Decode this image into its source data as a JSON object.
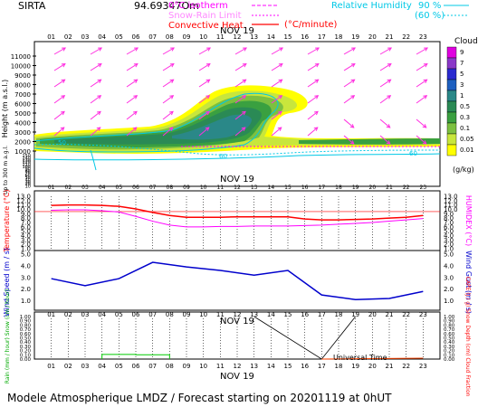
{
  "header": {
    "site": "SIRTA",
    "code": "94.69347Om",
    "legend_isotherm": "0°C isotherm",
    "legend_snow_rain": "Snow-Rain Limit",
    "legend_convective": "Convective Heat.",
    "legend_convective_units": "(°C/minute)",
    "legend_rh": "Relative Humidity",
    "rh_90": "90 %",
    "rh_60": "(60 %)"
  },
  "colors": {
    "isotherm": "#ff00ff",
    "snow_rain": "#ff00ff",
    "convective": "#ff0000",
    "humidity": "#00c8e6",
    "wind_arrows": "#ff2fe0",
    "temperature": "#ff0000",
    "humidex": "#ff00ff",
    "wind": "#0000cc",
    "rain": "#00cc00",
    "snow": "#0000cc",
    "cloud_fraction": "#000000"
  },
  "time_axis": {
    "hours": [
      "01",
      "02",
      "03",
      "04",
      "05",
      "06",
      "07",
      "08",
      "09",
      "10",
      "11",
      "12",
      "13",
      "14",
      "15",
      "16",
      "17",
      "18",
      "19",
      "20",
      "21",
      "22",
      "23"
    ],
    "date_label": "NOV 19",
    "xlabel": "Universal Time"
  },
  "footer": {
    "title": "Modele Atmospherique LMDZ / Forecast starting on 20201119 at 0hUT"
  },
  "chart_data": [
    {
      "type": "heatmap",
      "panel": "clouds-height",
      "ylabel": "Height (m a.s.l.)",
      "ylabel_lower": "Up to 300 m a.g.l.",
      "yticks_upper": [
        "11000",
        "10000",
        "9000",
        "8000",
        "7000",
        "6000",
        "5000",
        "4000",
        "3000",
        "2000",
        "1000"
      ],
      "yticks_lower": [
        "150",
        "140",
        "130",
        "120",
        "110",
        "100",
        "90",
        "80",
        "70",
        "60",
        "50",
        "40",
        "30",
        "20",
        "10"
      ],
      "colorbar_title": "Clouds",
      "colorbar_labels": [
        "9",
        "7",
        "5",
        "3",
        "1",
        "0.5",
        "0.3",
        "0.1",
        "0.05",
        "0.01"
      ],
      "colorbar_units": "(g/kg)",
      "colorbar_colors": [
        "#e000e0",
        "#8a38c8",
        "#2a2ad0",
        "#1e60c0",
        "#2a8888",
        "#2a8a55",
        "#3aa040",
        "#7cc040",
        "#c8e63c",
        "#ffff00"
      ],
      "contour_labels": [
        "50",
        "60",
        "60"
      ],
      "isotherm_height_m": 5800,
      "cloud_layers": [
        {
          "from_hour": 1,
          "to_hour": 9,
          "base_m": 1500,
          "top_m": 2600,
          "max_gkg": 0.3
        },
        {
          "from_hour": 8,
          "to_hour": 14,
          "base_m": 1700,
          "top_m": 4800,
          "max_gkg": 1
        },
        {
          "from_hour": 11,
          "to_hour": 15,
          "base_m": 4000,
          "top_m": 6800,
          "max_gkg": 0.5
        },
        {
          "from_hour": 16,
          "to_hour": 23,
          "base_m": 1300,
          "top_m": 1800,
          "max_gkg": 0.05
        }
      ],
      "wind_arrows": "south-westerly aloft, north-westerly near surface after 16 UT"
    },
    {
      "type": "line",
      "panel": "temperature",
      "ylabel": "Temperature (°C)",
      "ylabel_right": "HUMIDEX (°C)",
      "yticks": [
        "13.0",
        "12.0",
        "11.0",
        "10.0",
        "9.0",
        "8.0",
        "7.0",
        "6.0",
        "5.0",
        "4.0",
        "3.0",
        "2.0",
        "1.0"
      ],
      "ylim": [
        1.0,
        13.0
      ],
      "x": [
        1,
        2,
        3,
        4,
        5,
        6,
        7,
        8,
        9,
        10,
        11,
        12,
        13,
        14,
        15,
        16,
        17,
        18,
        19,
        20,
        21,
        22,
        23
      ],
      "series": [
        {
          "name": "Temperature",
          "values": [
            10.9,
            11.0,
            11.0,
            10.9,
            10.7,
            10.1,
            9.3,
            8.6,
            8.2,
            8.2,
            8.2,
            8.3,
            8.3,
            8.3,
            8.3,
            7.8,
            7.6,
            7.6,
            7.7,
            7.8,
            8.0,
            8.2,
            8.6
          ]
        },
        {
          "name": "HUMIDEX",
          "values": [
            9.8,
            9.9,
            9.9,
            9.7,
            9.4,
            8.4,
            7.3,
            6.4,
            6.0,
            6.0,
            6.1,
            6.1,
            6.2,
            6.2,
            6.2,
            6.3,
            6.4,
            6.6,
            6.8,
            7.0,
            7.3,
            7.6,
            7.9
          ]
        }
      ],
      "reference_line": 9.5
    },
    {
      "type": "line",
      "panel": "wind",
      "ylabel": "Wind Speed (m / s)",
      "ylabel_right": "Wind Gust (m / s)",
      "yticks": [
        "5.0",
        "4.0",
        "3.0",
        "2.0",
        "1.0"
      ],
      "ylim": [
        0.5,
        5.0
      ],
      "x": [
        1,
        3,
        5,
        7,
        9,
        11,
        13,
        15,
        17,
        19,
        21,
        23
      ],
      "series": [
        {
          "name": "Wind Speed",
          "values": [
            2.9,
            2.3,
            2.9,
            4.3,
            3.9,
            3.6,
            3.2,
            3.6,
            1.5,
            1.1,
            1.2,
            1.8
          ]
        }
      ]
    },
    {
      "type": "line",
      "panel": "precipitation",
      "ylabel": "Rain (mm / hour) Snow (cm / hour)",
      "ylabel_right": "CAPE (J / g) Snow Depth (cm) Cloud Fraction",
      "yticks": [
        "1.00",
        "0.90",
        "0.80",
        "0.70",
        "0.60",
        "0.50",
        "0.40",
        "0.30",
        "0.20",
        "0.10",
        "0.00"
      ],
      "ylim": [
        0.0,
        1.0
      ],
      "series": [
        {
          "name": "Rain",
          "hours": [
            4,
            5,
            6,
            7,
            8
          ],
          "values": [
            0.11,
            0.11,
            0.1,
            0.1,
            0.0
          ]
        },
        {
          "name": "Cloud Fraction",
          "hours": [
            13,
            17,
            19
          ],
          "values": [
            1.0,
            0.0,
            1.0
          ]
        },
        {
          "name": "CAPE",
          "hours": [
            17,
            23
          ],
          "values": [
            0.0,
            0.02
          ]
        }
      ]
    }
  ]
}
